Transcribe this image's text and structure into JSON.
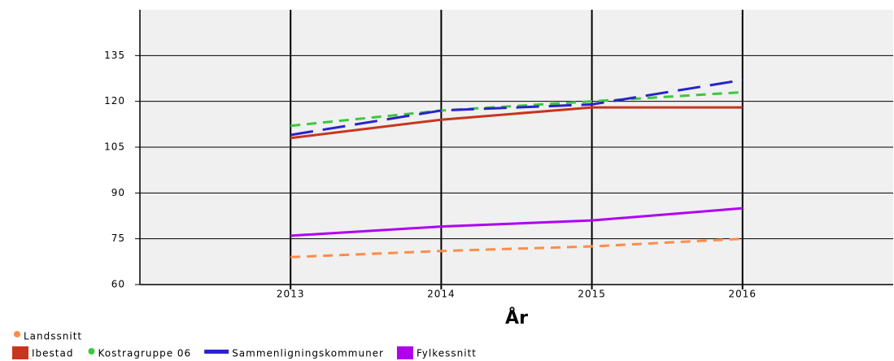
{
  "chart_data": {
    "type": "line",
    "x_label": "År",
    "x": [
      2013,
      2014,
      2015,
      2016
    ],
    "xlim": [
      2012,
      2017
    ],
    "xticks": [
      2013,
      2014,
      2015,
      2016
    ],
    "ylim": [
      60,
      150
    ],
    "yticks": [
      60,
      75,
      90,
      105,
      120,
      135
    ],
    "grid": true,
    "legend": "bottom",
    "series": [
      {
        "name": "Landssnitt",
        "color": "#ff8c4a",
        "dash": "dashed",
        "legend_marker": "circle",
        "values": [
          69,
          71,
          72.5,
          75
        ]
      },
      {
        "name": "Ibestad",
        "color": "#c8351e",
        "dash": "solid",
        "legend_marker": "square",
        "values": [
          108,
          114,
          118,
          118
        ]
      },
      {
        "name": "Kostragruppe 06",
        "color": "#3cc83c",
        "dash": "dashed",
        "legend_marker": "circle",
        "values": [
          112,
          117,
          120,
          123
        ]
      },
      {
        "name": "Sammenligningskommuner",
        "color": "#2a22cc",
        "dash": "longdash",
        "legend_marker": "bar",
        "values": [
          109,
          117,
          119,
          127
        ]
      },
      {
        "name": "Fylkessnitt",
        "color": "#b000f0",
        "dash": "solid",
        "legend_marker": "square",
        "values": [
          76,
          79,
          81,
          85
        ]
      }
    ]
  }
}
